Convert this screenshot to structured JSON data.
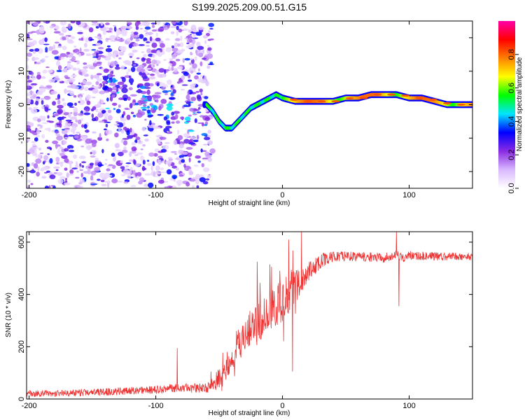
{
  "title": "S199.2025.209.00.51.G15",
  "chart_data": [
    {
      "type": "heatmap",
      "xlabel": "Height of straight line (km)",
      "ylabel": "Frequency (Hz)",
      "xlim": [
        -202,
        150
      ],
      "ylim": [
        -25,
        25
      ],
      "xticks": [
        -200,
        -100,
        0,
        100
      ],
      "xtick_labels": [
        "-200",
        "-100",
        "0",
        "100"
      ],
      "yticks": [
        -20,
        -10,
        0,
        10,
        20
      ],
      "ytick_labels": [
        "-20",
        "-10",
        "0",
        "10",
        "20"
      ],
      "colorbar": {
        "label": "Normalized spectral amplitude",
        "range": [
          0,
          1
        ],
        "ticks": [
          0.0,
          0.2,
          0.4,
          0.6,
          0.8
        ],
        "tick_labels": [
          "0.0",
          "0.2",
          "0.4",
          "0.6",
          "0.8"
        ],
        "colors": [
          "#ffffff",
          "#d9b8ff",
          "#8a2be2",
          "#0000ff",
          "#00e5ff",
          "#00ff00",
          "#ffff00",
          "#ff8000",
          "#ff0000",
          "#ff00aa"
        ]
      },
      "ridge": {
        "x": [
          -60,
          -55,
          -50,
          -45,
          -40,
          -35,
          -30,
          -25,
          -20,
          -15,
          -10,
          -5,
          0,
          10,
          20,
          30,
          40,
          50,
          60,
          70,
          80,
          90,
          100,
          110,
          120,
          130,
          140,
          150
        ],
        "y": [
          0,
          -2,
          -5,
          -7,
          -7,
          -5,
          -3,
          -1,
          0,
          1,
          2,
          3,
          2,
          1,
          1,
          1,
          1,
          2,
          2,
          3,
          3,
          3,
          2,
          2,
          1,
          0,
          0,
          0
        ]
      },
      "scatter_region": {
        "x": [
          -202,
          -55
        ],
        "y": [
          -25,
          25
        ],
        "amplitude": [
          0.0,
          0.3
        ]
      },
      "grid": false
    },
    {
      "type": "line",
      "xlabel": "Height of straight line (km)",
      "ylabel": "SNR (10 * v/v)",
      "xlim": [
        -202,
        150
      ],
      "ylim": [
        0,
        640
      ],
      "xticks": [
        -200,
        -100,
        0,
        100
      ],
      "xtick_labels": [
        "-200",
        "-100",
        "0",
        "100"
      ],
      "yticks": [
        0,
        200,
        400,
        600
      ],
      "ytick_labels": [
        "0",
        "200",
        "400",
        "600"
      ],
      "color": "#ee3333",
      "envelope": {
        "x": [
          -202,
          -150,
          -100,
          -80,
          -60,
          -50,
          -40,
          -30,
          -20,
          -10,
          0,
          5,
          10,
          20,
          30,
          40,
          60,
          80,
          90,
          95,
          100,
          120,
          150
        ],
        "y": [
          20,
          25,
          35,
          45,
          40,
          70,
          150,
          230,
          300,
          330,
          380,
          400,
          430,
          480,
          530,
          545,
          545,
          540,
          550,
          540,
          550,
          545,
          545
        ]
      },
      "noise": {
        "x": [
          -202,
          -100,
          -60,
          -40,
          -20,
          0,
          20,
          40,
          150
        ],
        "amp": [
          12,
          15,
          20,
          40,
          80,
          90,
          40,
          20,
          15
        ]
      },
      "spikes": [
        {
          "x": -83,
          "y": 195
        },
        {
          "x": -20,
          "y": 525
        },
        {
          "x": -10,
          "y": 515
        },
        {
          "x": -5,
          "y": 350
        },
        {
          "x": 5,
          "y": 610
        },
        {
          "x": 8,
          "y": 105
        },
        {
          "x": 15,
          "y": 640
        },
        {
          "x": 90,
          "y": 640
        },
        {
          "x": 92,
          "y": 355
        }
      ],
      "grid": false
    }
  ]
}
